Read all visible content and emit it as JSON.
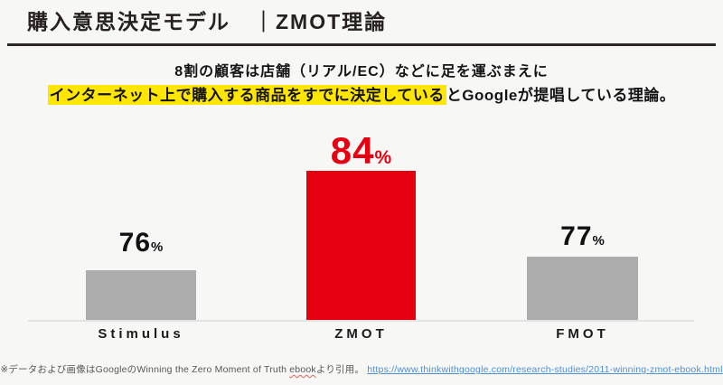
{
  "header": {
    "title": "購入意思決定モデル　｜ZMOT理論"
  },
  "lead": {
    "line1": "8割の顧客は店舗（リアル/EC）などに足を運ぶまえに",
    "line2_highlighted": "インターネット上で購入する商品をすでに決定している",
    "line2_rest": "とGoogleが提唱している理論。",
    "highlight_color": "#ffe600"
  },
  "chart_data": {
    "type": "bar",
    "categories": [
      "Stimulus",
      "ZMOT",
      "FMOT"
    ],
    "values": [
      76,
      84,
      77
    ],
    "unit": "%",
    "title": "",
    "xlabel": "",
    "ylabel": "",
    "grid": false,
    "legend": false,
    "highlight_index": 1,
    "colors": {
      "bar_default": "#adadad",
      "bar_highlight": "#e60012",
      "value_label_default": "#111111",
      "value_label_highlight": "#e60012",
      "baseline": "#e3e3e3"
    }
  },
  "footnote": {
    "note_prefix": "※データおよび画像はGoogleのWinning the Zero Moment of Truth ",
    "note_ebook": "ebook",
    "note_suffix": "より引用。",
    "link_text": "https://www.thinkwithgoogle.com/research-studies/2011-winning-zmot-ebook.html",
    "link_color": "#4a90d2"
  }
}
